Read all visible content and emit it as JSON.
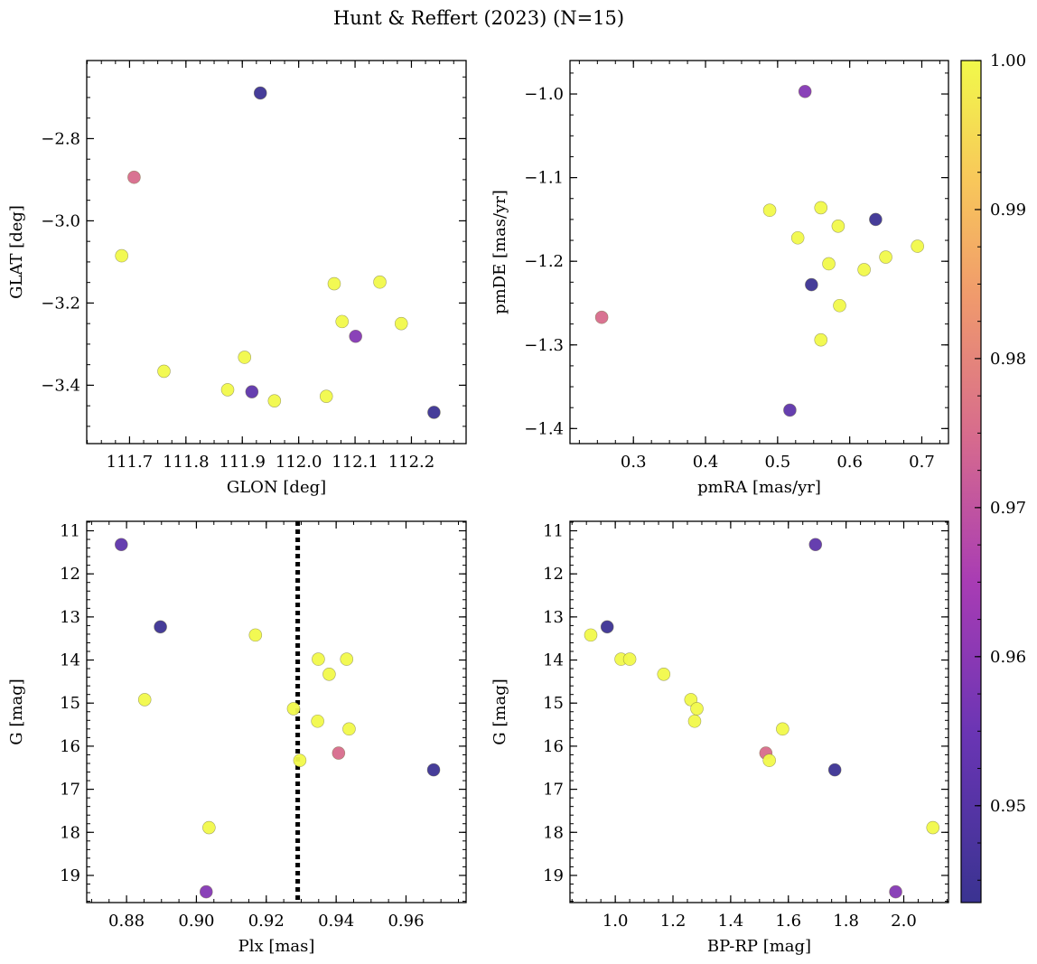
{
  "figure_title": "Hunt & Reffert (2023) (N=15)",
  "colorbar": {
    "ticks": [
      "1.00",
      "0.99",
      "0.98",
      "0.97",
      "0.96",
      "0.95"
    ],
    "tick_values": [
      1.0,
      0.99,
      0.98,
      0.97,
      0.96,
      0.95
    ],
    "range": [
      0.9435,
      1.0
    ],
    "colormap": "plasma-muted"
  },
  "chart_data": [
    {
      "type": "scatter",
      "name": "sky",
      "xlabel": "GLON [deg]",
      "ylabel": "GLAT [deg]",
      "xlim": [
        111.624,
        112.297
      ],
      "ylim": [
        -3.542,
        -2.61
      ],
      "y_inverted": false,
      "xticks": [
        "111.7",
        "111.8",
        "111.9",
        "112.0",
        "112.1",
        "112.2"
      ],
      "xtick_values": [
        111.7,
        111.8,
        111.9,
        112.0,
        112.1,
        112.2
      ],
      "yticks": [
        "−2.8",
        "−3.0",
        "−3.2",
        "−3.4"
      ],
      "ytick_values": [
        -2.8,
        -3.0,
        -3.2,
        -3.4
      ],
      "points": [
        {
          "x": 111.932,
          "y": -2.689,
          "c": 0.944
        },
        {
          "x": 111.708,
          "y": -2.894,
          "c": 0.975
        },
        {
          "x": 111.686,
          "y": -3.085,
          "c": 1.0
        },
        {
          "x": 112.063,
          "y": -3.153,
          "c": 1.0
        },
        {
          "x": 112.144,
          "y": -3.149,
          "c": 1.0
        },
        {
          "x": 112.077,
          "y": -3.245,
          "c": 1.0
        },
        {
          "x": 112.182,
          "y": -3.25,
          "c": 1.0
        },
        {
          "x": 112.101,
          "y": -3.281,
          "c": 0.959
        },
        {
          "x": 111.904,
          "y": -3.332,
          "c": 1.0
        },
        {
          "x": 111.761,
          "y": -3.366,
          "c": 1.0
        },
        {
          "x": 111.874,
          "y": -3.411,
          "c": 1.0
        },
        {
          "x": 111.917,
          "y": -3.416,
          "c": 0.952
        },
        {
          "x": 111.957,
          "y": -3.438,
          "c": 1.0
        },
        {
          "x": 112.049,
          "y": -3.427,
          "c": 1.0
        },
        {
          "x": 112.24,
          "y": -3.466,
          "c": 0.944
        }
      ]
    },
    {
      "type": "scatter",
      "name": "proper-motion",
      "xlabel": "pmRA [mas/yr]",
      "ylabel": "pmDE [mas/yr]",
      "xlim": [
        0.212,
        0.737
      ],
      "ylim": [
        -1.418,
        -0.96
      ],
      "y_inverted": false,
      "xticks": [
        "0.3",
        "0.4",
        "0.5",
        "0.6",
        "0.7"
      ],
      "xtick_values": [
        0.3,
        0.4,
        0.5,
        0.6,
        0.7
      ],
      "yticks": [
        "−1.0",
        "−1.1",
        "−1.2",
        "−1.3",
        "−1.4"
      ],
      "ytick_values": [
        -1.0,
        -1.1,
        -1.2,
        -1.3,
        -1.4
      ],
      "points": [
        {
          "x": 0.538,
          "y": -0.997,
          "c": 0.959
        },
        {
          "x": 0.489,
          "y": -1.139,
          "c": 1.0
        },
        {
          "x": 0.56,
          "y": -1.136,
          "c": 1.0
        },
        {
          "x": 0.636,
          "y": -1.15,
          "c": 0.944
        },
        {
          "x": 0.584,
          "y": -1.158,
          "c": 1.0
        },
        {
          "x": 0.528,
          "y": -1.172,
          "c": 1.0
        },
        {
          "x": 0.694,
          "y": -1.182,
          "c": 1.0
        },
        {
          "x": 0.65,
          "y": -1.195,
          "c": 1.0
        },
        {
          "x": 0.571,
          "y": -1.203,
          "c": 1.0
        },
        {
          "x": 0.62,
          "y": -1.21,
          "c": 1.0
        },
        {
          "x": 0.547,
          "y": -1.228,
          "c": 0.944
        },
        {
          "x": 0.586,
          "y": -1.253,
          "c": 1.0
        },
        {
          "x": 0.256,
          "y": -1.267,
          "c": 0.975
        },
        {
          "x": 0.56,
          "y": -1.294,
          "c": 1.0
        },
        {
          "x": 0.517,
          "y": -1.378,
          "c": 0.952
        }
      ]
    },
    {
      "type": "scatter",
      "name": "g-vs-plx",
      "xlabel": "Plx [mas]",
      "ylabel": "G [mag]",
      "xlim": [
        0.8686,
        0.9772
      ],
      "ylim": [
        19.63,
        10.78
      ],
      "y_inverted": true,
      "xticks": [
        "0.88",
        "0.90",
        "0.92",
        "0.94",
        "0.96"
      ],
      "xtick_values": [
        0.88,
        0.9,
        0.92,
        0.94,
        0.96
      ],
      "yticks": [
        "11",
        "12",
        "13",
        "14",
        "15",
        "16",
        "17",
        "18",
        "19"
      ],
      "ytick_values": [
        11,
        12,
        13,
        14,
        15,
        16,
        17,
        18,
        19
      ],
      "vline": 0.929,
      "points": [
        {
          "x": 0.8785,
          "y": 11.32,
          "c": 0.952
        },
        {
          "x": 0.8897,
          "y": 13.23,
          "c": 0.944
        },
        {
          "x": 0.9169,
          "y": 13.42,
          "c": 1.0
        },
        {
          "x": 0.9349,
          "y": 13.98,
          "c": 1.0
        },
        {
          "x": 0.943,
          "y": 13.98,
          "c": 1.0
        },
        {
          "x": 0.938,
          "y": 14.33,
          "c": 1.0
        },
        {
          "x": 0.8852,
          "y": 14.92,
          "c": 1.0
        },
        {
          "x": 0.9278,
          "y": 15.13,
          "c": 1.0
        },
        {
          "x": 0.9347,
          "y": 15.42,
          "c": 1.0
        },
        {
          "x": 0.9437,
          "y": 15.6,
          "c": 1.0
        },
        {
          "x": 0.9407,
          "y": 16.16,
          "c": 0.975
        },
        {
          "x": 0.9296,
          "y": 16.33,
          "c": 1.0
        },
        {
          "x": 0.9679,
          "y": 16.55,
          "c": 0.944
        },
        {
          "x": 0.9036,
          "y": 17.89,
          "c": 1.0
        },
        {
          "x": 0.9028,
          "y": 19.38,
          "c": 0.959
        }
      ]
    },
    {
      "type": "scatter",
      "name": "cmd",
      "xlabel": "BP-RP [mag]",
      "ylabel": "G [mag]",
      "xlim": [
        0.843,
        2.155
      ],
      "ylim": [
        19.63,
        10.78
      ],
      "y_inverted": true,
      "xticks": [
        "1.0",
        "1.2",
        "1.4",
        "1.6",
        "1.8",
        "2.0"
      ],
      "xtick_values": [
        1.0,
        1.2,
        1.4,
        1.6,
        1.8,
        2.0
      ],
      "yticks": [
        "11",
        "12",
        "13",
        "14",
        "15",
        "16",
        "17",
        "18",
        "19"
      ],
      "ytick_values": [
        11,
        12,
        13,
        14,
        15,
        16,
        17,
        18,
        19
      ],
      "points": [
        {
          "x": 1.694,
          "y": 11.32,
          "c": 0.952
        },
        {
          "x": 0.972,
          "y": 13.23,
          "c": 0.944
        },
        {
          "x": 0.915,
          "y": 13.42,
          "c": 1.0
        },
        {
          "x": 1.02,
          "y": 13.98,
          "c": 1.0
        },
        {
          "x": 1.05,
          "y": 13.98,
          "c": 1.0
        },
        {
          "x": 1.168,
          "y": 14.33,
          "c": 1.0
        },
        {
          "x": 1.262,
          "y": 14.92,
          "c": 1.0
        },
        {
          "x": 1.283,
          "y": 15.13,
          "c": 1.0
        },
        {
          "x": 1.275,
          "y": 15.42,
          "c": 1.0
        },
        {
          "x": 1.58,
          "y": 15.6,
          "c": 1.0
        },
        {
          "x": 1.522,
          "y": 16.16,
          "c": 0.975
        },
        {
          "x": 1.534,
          "y": 16.33,
          "c": 1.0
        },
        {
          "x": 1.761,
          "y": 16.55,
          "c": 0.944
        },
        {
          "x": 2.101,
          "y": 17.89,
          "c": 1.0
        },
        {
          "x": 1.972,
          "y": 19.38,
          "c": 0.959
        }
      ]
    }
  ]
}
